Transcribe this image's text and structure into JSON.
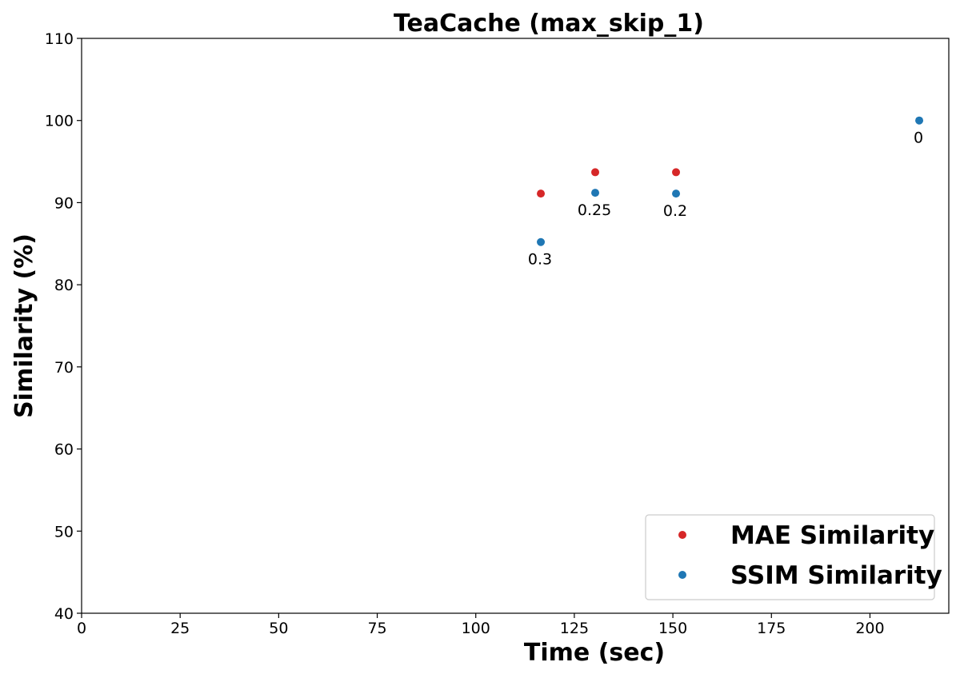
{
  "chart_data": {
    "type": "scatter",
    "title": "TeaCache (max_skip_1)",
    "xlabel": "Time (sec)",
    "ylabel": "Similarity (%)",
    "xlim": [
      0,
      220
    ],
    "ylim": [
      40,
      110
    ],
    "xticks": [
      0,
      25,
      50,
      75,
      100,
      125,
      150,
      175,
      200
    ],
    "yticks": [
      40,
      50,
      60,
      70,
      80,
      90,
      100,
      110
    ],
    "grid": false,
    "legend_position": "lower-right",
    "series": [
      {
        "name": "MAE Similarity",
        "color": "#d62728",
        "points": [
          {
            "x": 116.5,
            "y": 91.1
          },
          {
            "x": 130.3,
            "y": 93.7
          },
          {
            "x": 150.8,
            "y": 93.7
          }
        ]
      },
      {
        "name": "SSIM Similarity",
        "color": "#1f77b4",
        "points": [
          {
            "x": 116.5,
            "y": 85.2,
            "label": "0.3"
          },
          {
            "x": 130.3,
            "y": 91.2,
            "label": "0.25"
          },
          {
            "x": 150.8,
            "y": 91.1,
            "label": "0.2"
          },
          {
            "x": 212.5,
            "y": 100.0,
            "label": "0"
          }
        ]
      }
    ]
  }
}
